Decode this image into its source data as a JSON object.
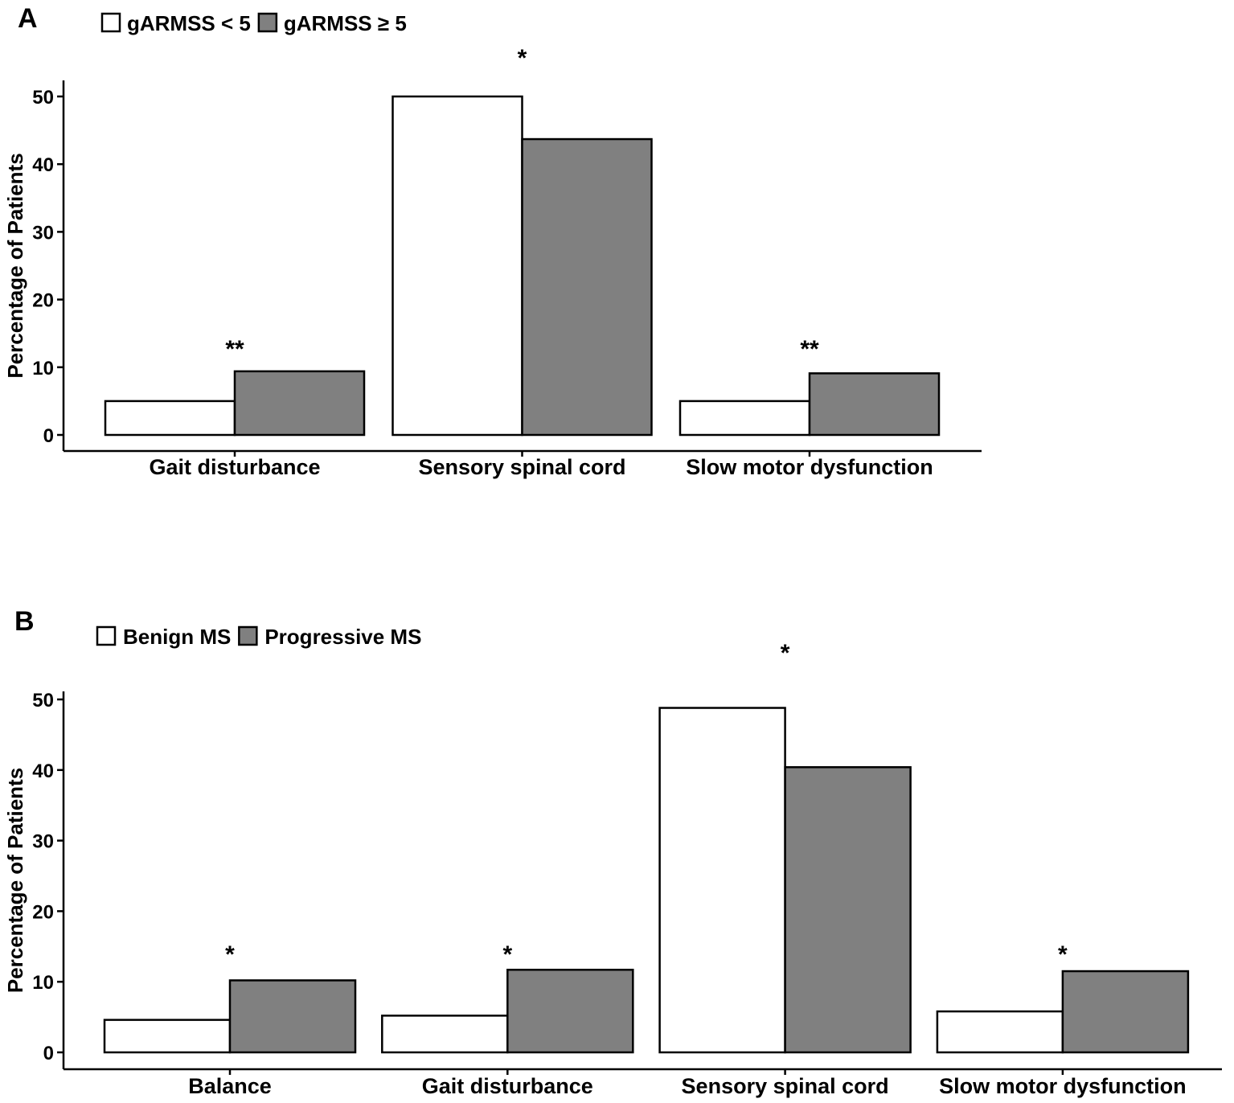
{
  "chart_data": [
    {
      "type": "bar",
      "panel_label": "A",
      "categories": [
        "Gait disturbance",
        "Sensory spinal cord",
        "Slow motor dysfunction"
      ],
      "series": [
        {
          "name": "gARMSS < 5",
          "values": [
            5.0,
            50.0,
            5.0
          ],
          "color": "#ffffff"
        },
        {
          "name": "gARMSS ≥ 5",
          "values": [
            9.4,
            43.7,
            9.1
          ],
          "color": "#808080"
        }
      ],
      "significance": [
        "**",
        "*",
        "**"
      ],
      "ylabel": "Percentage of Patients",
      "xlabel": "",
      "yticks": [
        0,
        10,
        20,
        30,
        40,
        50
      ],
      "ylim": [
        0,
        52
      ],
      "legend_position": "top-left",
      "grid": false
    },
    {
      "type": "bar",
      "panel_label": "B",
      "categories": [
        "Balance",
        "Gait disturbance",
        "Sensory spinal cord",
        "Slow motor dysfunction"
      ],
      "series": [
        {
          "name": "Benign MS",
          "values": [
            4.6,
            5.2,
            48.8,
            5.8
          ],
          "color": "#ffffff"
        },
        {
          "name": "Progressive MS",
          "values": [
            10.2,
            11.7,
            40.4,
            11.5
          ],
          "color": "#808080"
        }
      ],
      "significance": [
        "*",
        "*",
        "*",
        "*"
      ],
      "ylabel": "Percentage of Patients",
      "xlabel": "",
      "yticks": [
        0,
        10,
        20,
        30,
        40,
        50
      ],
      "ylim": [
        0,
        51
      ],
      "legend_position": "top-left",
      "grid": false
    }
  ]
}
